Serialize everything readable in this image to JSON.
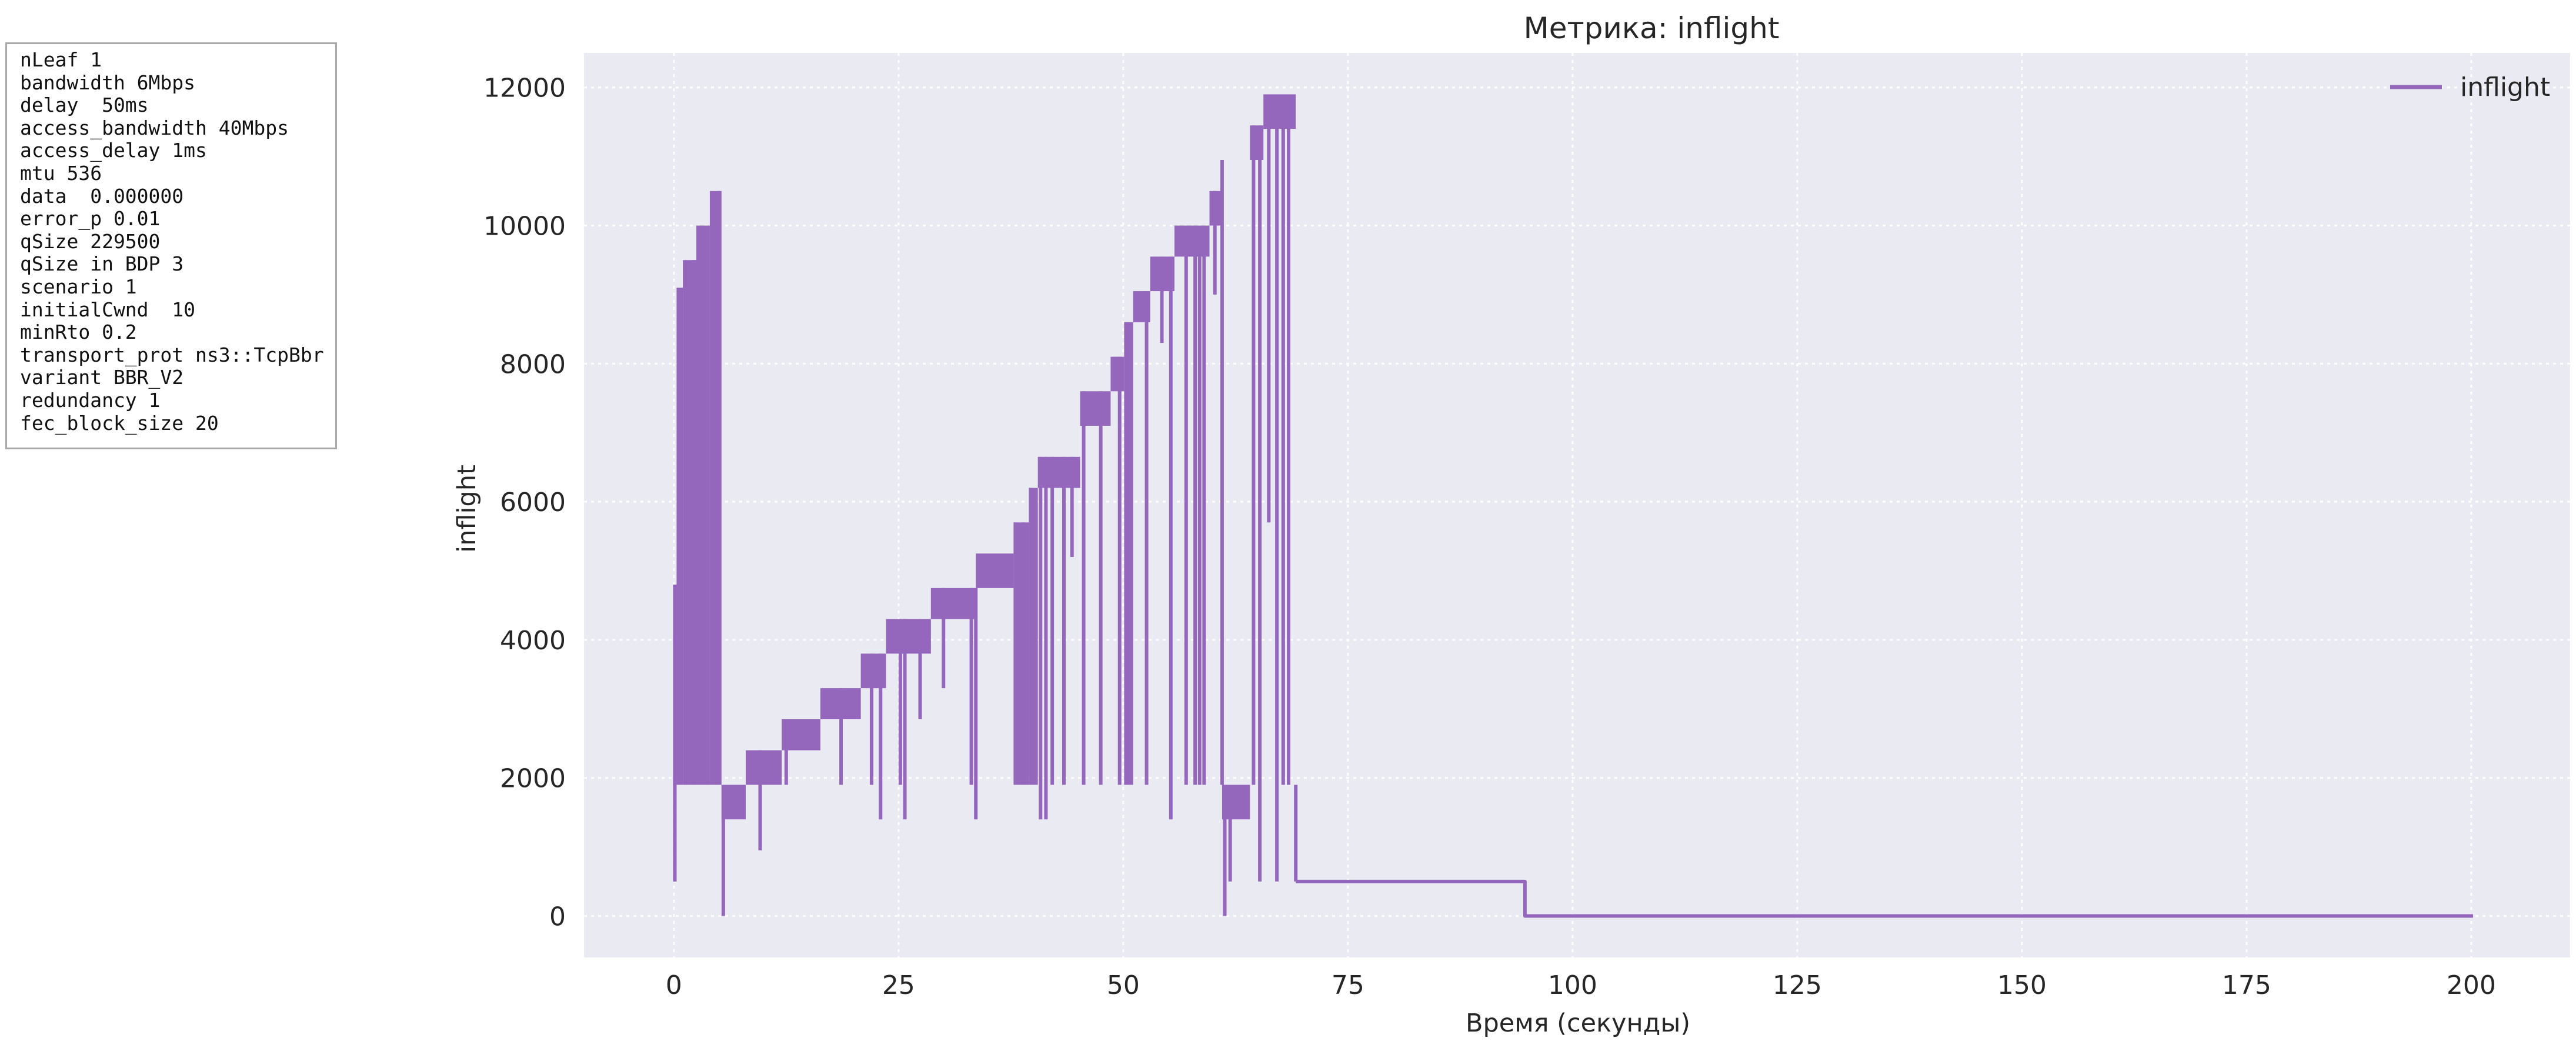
{
  "params_box": {
    "lines": [
      "nLeaf 1",
      "bandwidth 6Mbps",
      "delay  50ms",
      "access_bandwidth 40Mbps",
      "access_delay 1ms",
      "mtu 536",
      "data  0.000000",
      "error_p 0.01",
      "qSize 229500",
      "qSize in BDP 3",
      "scenario 1",
      "initialCwnd  10",
      "minRto 0.2",
      "transport_prot ns3::TcpBbr",
      "variant BBR_V2",
      "redundancy 1",
      "fec_block_size 20"
    ]
  },
  "chart_data": {
    "type": "line",
    "title": "Метрика: inflight",
    "xlabel": "Время (секунды)",
    "ylabel": "inflight",
    "xlim": [
      -10,
      211
    ],
    "ylim": [
      -600,
      12500
    ],
    "xticks": [
      0,
      25,
      50,
      75,
      100,
      125,
      150,
      175,
      200
    ],
    "yticks": [
      0,
      2000,
      4000,
      6000,
      8000,
      10000,
      12000
    ],
    "grid": true,
    "legend_position": "top-right",
    "series_color": "#9467bd",
    "series": [
      {
        "name": "inflight",
        "bands": [
          {
            "x0": 0.0,
            "x1": 0.3,
            "lo": 500,
            "hi": 4800
          },
          {
            "x0": 0.3,
            "x1": 1.0,
            "lo": 1900,
            "hi": 9100
          },
          {
            "x0": 1.0,
            "x1": 2.5,
            "lo": 1900,
            "hi": 9500
          },
          {
            "x0": 2.5,
            "x1": 4.0,
            "lo": 1900,
            "hi": 10000
          },
          {
            "x0": 4.0,
            "x1": 5.3,
            "lo": 1900,
            "hi": 10500
          },
          {
            "x0": 5.3,
            "x1": 8.0,
            "lo": 1400,
            "hi": 1900
          },
          {
            "x0": 8.0,
            "x1": 12.0,
            "lo": 1900,
            "hi": 2400
          },
          {
            "x0": 12.0,
            "x1": 16.3,
            "lo": 2400,
            "hi": 2850
          },
          {
            "x0": 16.3,
            "x1": 20.8,
            "lo": 2850,
            "hi": 3300
          },
          {
            "x0": 20.8,
            "x1": 23.6,
            "lo": 3300,
            "hi": 3800
          },
          {
            "x0": 23.6,
            "x1": 28.6,
            "lo": 3800,
            "hi": 4300
          },
          {
            "x0": 28.6,
            "x1": 33.6,
            "lo": 4300,
            "hi": 4750
          },
          {
            "x0": 33.6,
            "x1": 37.8,
            "lo": 4750,
            "hi": 5250
          },
          {
            "x0": 37.8,
            "x1": 39.5,
            "lo": 1900,
            "hi": 5700
          },
          {
            "x0": 39.5,
            "x1": 40.5,
            "lo": 1900,
            "hi": 6200
          },
          {
            "x0": 40.5,
            "x1": 45.2,
            "lo": 6200,
            "hi": 6650
          },
          {
            "x0": 45.2,
            "x1": 48.6,
            "lo": 7100,
            "hi": 7600
          },
          {
            "x0": 48.6,
            "x1": 50.1,
            "lo": 7600,
            "hi": 8100
          },
          {
            "x0": 50.1,
            "x1": 51.1,
            "lo": 1900,
            "hi": 8600
          },
          {
            "x0": 51.1,
            "x1": 53.0,
            "lo": 8600,
            "hi": 9050
          },
          {
            "x0": 53.0,
            "x1": 55.7,
            "lo": 9050,
            "hi": 9550
          },
          {
            "x0": 55.7,
            "x1": 59.6,
            "lo": 9550,
            "hi": 10000
          },
          {
            "x0": 59.6,
            "x1": 61.0,
            "lo": 10000,
            "hi": 10500
          },
          {
            "x0": 61.0,
            "x1": 64.1,
            "lo": 1400,
            "hi": 1900
          },
          {
            "x0": 64.1,
            "x1": 65.6,
            "lo": 10950,
            "hi": 11450
          },
          {
            "x0": 65.6,
            "x1": 69.2,
            "lo": 11400,
            "hi": 11900
          }
        ],
        "spikes": [
          {
            "x": 0.1,
            "lo": 500,
            "hi": 4800
          },
          {
            "x": 2.2,
            "lo": 1900,
            "hi": 9500
          },
          {
            "x": 3.6,
            "lo": 1900,
            "hi": 9500
          },
          {
            "x": 5.0,
            "lo": 1900,
            "hi": 10500
          },
          {
            "x": 5.5,
            "lo": 0,
            "hi": 1900
          },
          {
            "x": 9.6,
            "lo": 950,
            "hi": 2400
          },
          {
            "x": 12.5,
            "lo": 1900,
            "hi": 2850
          },
          {
            "x": 18.6,
            "lo": 1900,
            "hi": 3300
          },
          {
            "x": 22.0,
            "lo": 1900,
            "hi": 3800
          },
          {
            "x": 23.0,
            "lo": 1400,
            "hi": 3800
          },
          {
            "x": 25.2,
            "lo": 1900,
            "hi": 4300
          },
          {
            "x": 25.7,
            "lo": 1400,
            "hi": 4300
          },
          {
            "x": 27.4,
            "lo": 2850,
            "hi": 4300
          },
          {
            "x": 30.0,
            "lo": 3300,
            "hi": 4750
          },
          {
            "x": 33.1,
            "lo": 1900,
            "hi": 4750
          },
          {
            "x": 33.6,
            "lo": 1400,
            "hi": 4750
          },
          {
            "x": 38.0,
            "lo": 1900,
            "hi": 5700
          },
          {
            "x": 38.9,
            "lo": 1900,
            "hi": 5700
          },
          {
            "x": 39.7,
            "lo": 1900,
            "hi": 6200
          },
          {
            "x": 40.8,
            "lo": 1400,
            "hi": 6650
          },
          {
            "x": 41.4,
            "lo": 1400,
            "hi": 6650
          },
          {
            "x": 42.1,
            "lo": 1900,
            "hi": 6650
          },
          {
            "x": 43.4,
            "lo": 1900,
            "hi": 6650
          },
          {
            "x": 44.3,
            "lo": 5200,
            "hi": 6650
          },
          {
            "x": 45.6,
            "lo": 1900,
            "hi": 7600
          },
          {
            "x": 47.5,
            "lo": 1900,
            "hi": 7600
          },
          {
            "x": 49.6,
            "lo": 1900,
            "hi": 8100
          },
          {
            "x": 50.8,
            "lo": 1900,
            "hi": 8600
          },
          {
            "x": 52.6,
            "lo": 1900,
            "hi": 9050
          },
          {
            "x": 54.3,
            "lo": 8300,
            "hi": 9550
          },
          {
            "x": 55.3,
            "lo": 1400,
            "hi": 9550
          },
          {
            "x": 57.0,
            "lo": 1900,
            "hi": 10000
          },
          {
            "x": 58.0,
            "lo": 1900,
            "hi": 10000
          },
          {
            "x": 58.5,
            "lo": 1900,
            "hi": 10000
          },
          {
            "x": 59.0,
            "lo": 1900,
            "hi": 10000
          },
          {
            "x": 60.2,
            "lo": 9000,
            "hi": 10500
          },
          {
            "x": 61.0,
            "lo": 1900,
            "hi": 10950
          },
          {
            "x": 61.3,
            "lo": 0,
            "hi": 1900
          },
          {
            "x": 61.9,
            "lo": 500,
            "hi": 1900
          },
          {
            "x": 64.5,
            "lo": 1900,
            "hi": 11450
          },
          {
            "x": 65.2,
            "lo": 500,
            "hi": 11450
          },
          {
            "x": 66.2,
            "lo": 5700,
            "hi": 11900
          },
          {
            "x": 67.1,
            "lo": 500,
            "hi": 11900
          },
          {
            "x": 67.8,
            "lo": 1900,
            "hi": 11900
          },
          {
            "x": 68.4,
            "lo": 1900,
            "hi": 11900
          },
          {
            "x": 69.2,
            "lo": 500,
            "hi": 1900
          }
        ],
        "tail": [
          [
            69.2,
            500
          ],
          [
            94.7,
            500
          ],
          [
            94.7,
            0
          ],
          [
            200.2,
            0
          ]
        ]
      }
    ]
  }
}
